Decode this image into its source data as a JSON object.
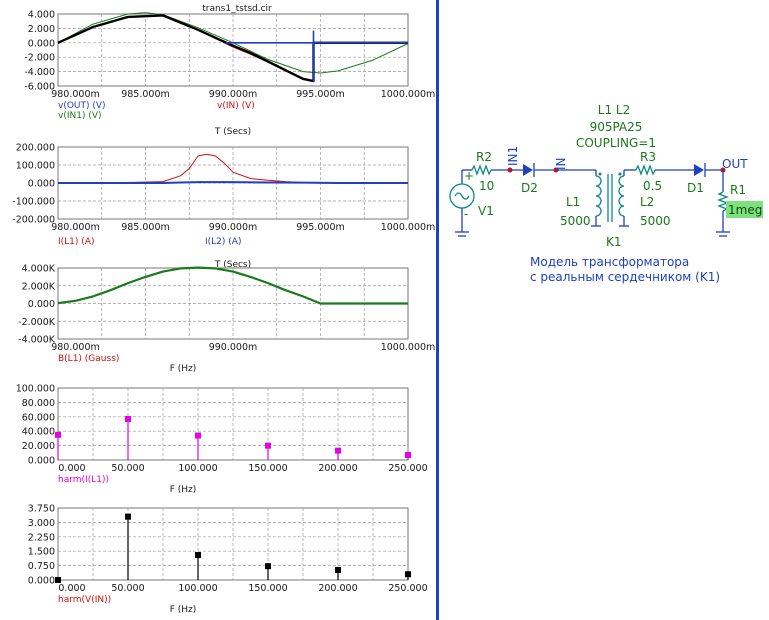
{
  "window_title": "trans1_tstsd.cir",
  "colors": {
    "out_black": "#000000",
    "in_red": "#d01010",
    "in1_green": "#1b7a1b",
    "blue": "#1f3fc4",
    "magenta": "#e600e6",
    "schematic_green": "#1a7a1a",
    "schematic_blue": "#1f3fc4",
    "highlight": "#7ee07e"
  },
  "plots": [
    {
      "id": "voltage",
      "xlabel": "T (Secs)",
      "x_ticks": [
        "980.000m",
        "985.000m",
        "990.000m",
        "995.000m",
        "1000.000m"
      ],
      "y_ticks": [
        "4.000",
        "2.000",
        "0.000",
        "-2.000",
        "-4.000",
        "-6.000"
      ],
      "traces": [
        {
          "name": "v(OUT) (V)",
          "color": "#1f3fc4"
        },
        {
          "name": "v(IN) (V)",
          "color": "#d01010"
        },
        {
          "name": "v(IN1) (V)",
          "color": "#1b7a1b"
        }
      ]
    },
    {
      "id": "current",
      "xlabel": "T (Secs)",
      "x_ticks": [
        "980.000m",
        "985.000m",
        "990.000m",
        "995.000m",
        "1000.000m"
      ],
      "y_ticks": [
        "200.000",
        "100.000",
        "0.000",
        "-100.000",
        "-200.000"
      ],
      "traces": [
        {
          "name": "I(L1) (A)",
          "color": "#d01010"
        },
        {
          "name": "I(L2) (A)",
          "color": "#1f3fc4"
        }
      ]
    },
    {
      "id": "flux",
      "xlabel": "F (Hz)",
      "x_ticks": [
        "980.000m",
        "990.000m",
        "1000.000m"
      ],
      "y_ticks": [
        "4.000K",
        "2.000K",
        "0.000",
        "-2.000K",
        "-4.000K"
      ],
      "traces": [
        {
          "name": "B(L1) (Gauss)",
          "color": "#d01010"
        }
      ]
    },
    {
      "id": "harm_i",
      "xlabel": "F (Hz)",
      "x_ticks": [
        "0.000",
        "50.000",
        "100.000",
        "150.000",
        "200.000",
        "250.000"
      ],
      "y_ticks": [
        "100.000",
        "80.000",
        "60.000",
        "40.000",
        "20.000",
        "0.000"
      ],
      "traces": [
        {
          "name": "harm(I(L1))",
          "color": "#e600e6"
        }
      ]
    },
    {
      "id": "harm_v",
      "xlabel": "F (Hz)",
      "x_ticks": [
        "0.000",
        "50.000",
        "100.000",
        "150.000",
        "200.000",
        "250.000"
      ],
      "y_ticks": [
        "3.750",
        "3.000",
        "2.250",
        "1.500",
        "0.750",
        "0.000"
      ],
      "traces": [
        {
          "name": "harm(V(IN))",
          "color": "#d01010"
        }
      ]
    }
  ],
  "chart_data": [
    {
      "type": "line",
      "xlim": [
        980,
        1000
      ],
      "ylim": [
        -6,
        4
      ],
      "series": [
        {
          "name": "v(OUT) (V)",
          "x": [
            980,
            982,
            984,
            986,
            987,
            988,
            989,
            990,
            991,
            992,
            993,
            994,
            994.6,
            994.6,
            1000
          ],
          "y": [
            0,
            2.2,
            3.6,
            3.8,
            2.8,
            1.8,
            0.7,
            -0.4,
            -1.4,
            -2.6,
            -3.8,
            -5.0,
            -5.3,
            0,
            0
          ]
        },
        {
          "name": "v(IN) (V)",
          "x": [
            980,
            982,
            984,
            986,
            987,
            988,
            989,
            990,
            991,
            992,
            993,
            994,
            994.6
          ],
          "y": [
            0,
            2.2,
            3.6,
            3.8,
            2.9,
            1.8,
            0.6,
            -0.6,
            -1.6,
            -2.7,
            -3.9,
            -5.1,
            -5.4
          ]
        },
        {
          "name": "v(IN1) (V)",
          "x": [
            980,
            982,
            984,
            985,
            986,
            988,
            990,
            992,
            994,
            995,
            996,
            998,
            1000
          ],
          "y": [
            0,
            2.6,
            4.0,
            4.2,
            3.9,
            2.1,
            0,
            -2.3,
            -4.0,
            -4.2,
            -3.9,
            -2.4,
            -0.1
          ]
        }
      ]
    },
    {
      "type": "line",
      "xlim": [
        980,
        1000
      ],
      "ylim": [
        -200,
        200
      ],
      "series": [
        {
          "name": "I(L1) (A)",
          "x": [
            980,
            984,
            986,
            987,
            987.5,
            988,
            988.5,
            989,
            989.5,
            990,
            991,
            992,
            993,
            994,
            996,
            1000
          ],
          "y": [
            0,
            3,
            8,
            40,
            80,
            150,
            160,
            150,
            110,
            60,
            25,
            15,
            8,
            3,
            0,
            0
          ]
        },
        {
          "name": "I(L2) (A)",
          "x": [
            980,
            986,
            987,
            988,
            990,
            992,
            994,
            996,
            1000
          ],
          "y": [
            0,
            0,
            3,
            5,
            5,
            3,
            2,
            0,
            0
          ]
        }
      ]
    },
    {
      "type": "line",
      "xlim": [
        980,
        1000
      ],
      "ylim": [
        -4000,
        4000
      ],
      "series": [
        {
          "name": "B(L1) (Gauss)",
          "x": [
            980,
            981,
            982,
            983,
            984,
            985,
            986,
            987,
            988,
            989,
            990,
            991,
            992,
            993,
            994,
            995,
            1000
          ],
          "y": [
            50,
            300,
            800,
            1500,
            2300,
            3000,
            3600,
            3950,
            4050,
            3950,
            3600,
            3000,
            2300,
            1500,
            800,
            0,
            0
          ]
        }
      ]
    },
    {
      "type": "scatter",
      "xlim": [
        0,
        250
      ],
      "ylim": [
        0,
        100
      ],
      "series": [
        {
          "name": "harm(I(L1))",
          "x": [
            0,
            50,
            100,
            150,
            200,
            250
          ],
          "y": [
            35,
            57,
            34,
            20,
            13,
            7
          ]
        }
      ]
    },
    {
      "type": "scatter",
      "xlim": [
        0,
        250
      ],
      "ylim": [
        0,
        3.75
      ],
      "series": [
        {
          "name": "harm(V(IN))",
          "x": [
            0,
            50,
            100,
            150,
            200,
            250
          ],
          "y": [
            0,
            3.3,
            1.3,
            0.72,
            0.52,
            0.3
          ]
        }
      ]
    }
  ],
  "schematic": {
    "coupling_label_1": "L1 L2",
    "coupling_label_2": "905PA25",
    "coupling_label_3": "COUPLING=1",
    "r2_name": "R2",
    "r2_value": "10",
    "r3_name": "R3",
    "r3_value": "0.5",
    "r1_name": "R1",
    "r1_value": "1meg",
    "v1_name": "V1",
    "d1_name": "D1",
    "d2_name": "D2",
    "l1_name": "L1",
    "l1_value": "5000",
    "l2_name": "L2",
    "l2_value": "5000",
    "k1_name": "K1",
    "node_in1": "IN1",
    "node_in": "IN",
    "node_out": "OUT",
    "plus": "+",
    "minus": "-",
    "caption_1": "Модель трансформатора",
    "caption_2": "с реальным сердечником (K1)"
  }
}
